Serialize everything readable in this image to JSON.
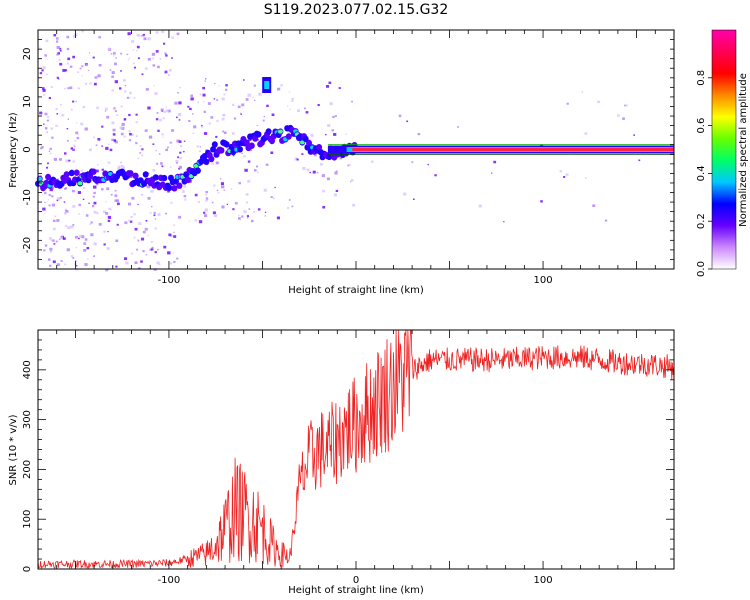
{
  "figure": {
    "title": "S119.2023.077.02.15.G32"
  },
  "chart_data": [
    {
      "type": "heatmap",
      "xlabel": "Height of straight line (km)",
      "ylabel": "Frequency (Hz)",
      "xlim": [
        -170,
        170
      ],
      "ylim": [
        -25,
        25
      ],
      "xticks": [
        -100,
        0,
        100
      ],
      "xtick_labels": [
        "-100",
        "",
        "100"
      ],
      "yticks": [
        -20,
        -10,
        0,
        10,
        20
      ],
      "ridge": {
        "x": [
          -170,
          -150,
          -130,
          -110,
          -95,
          -85,
          -75,
          -60,
          -50,
          -40,
          -35,
          -30,
          -25,
          -20,
          -17,
          -10,
          0,
          20,
          50,
          100,
          170
        ],
        "y": [
          -7,
          -6,
          -5.5,
          -6.5,
          -7,
          -4,
          0,
          1,
          2.5,
          3,
          3.5,
          2,
          1,
          -0.5,
          -2,
          0,
          0,
          0,
          0,
          0,
          0
        ]
      },
      "spur": {
        "x": -48,
        "y": 13.5
      },
      "colorbar": {
        "label": "Normalized spectral amplitude",
        "ticks": [
          0.0,
          0.2,
          0.4,
          0.6,
          0.8
        ],
        "tick_labels": [
          "0.0",
          "0.2",
          "0.4",
          "0.6",
          "0.8"
        ],
        "colors": [
          "#ffffff",
          "#cc88ff",
          "#6600ff",
          "#0000ff",
          "#00c8ff",
          "#00ff66",
          "#66ff00",
          "#ffff00",
          "#ff8800",
          "#ff0000",
          "#ff0055",
          "#ff00aa"
        ]
      },
      "grid": false
    },
    {
      "type": "line",
      "xlabel": "Height of straight line (km)",
      "ylabel": "SNR (10 * v/v)",
      "xlim": [
        -170,
        170
      ],
      "ylim": [
        0,
        480
      ],
      "xticks": [
        -100,
        0,
        100
      ],
      "xtick_labels": [
        "-100",
        "0",
        "100"
      ],
      "yticks": [
        0,
        100,
        200,
        300,
        400
      ],
      "color": "#ee2222",
      "envelope": {
        "x": [
          -170,
          -120,
          -100,
          -90,
          -80,
          -75,
          -70,
          -65,
          -60,
          -55,
          -50,
          -45,
          -40,
          -35,
          -33,
          -30,
          -25,
          -20,
          -15,
          -10,
          -5,
          0,
          5,
          10,
          15,
          20,
          25,
          30,
          35,
          40,
          50,
          60,
          80,
          100,
          120,
          140,
          160,
          170
        ],
        "y": [
          10,
          10,
          12,
          20,
          30,
          50,
          80,
          120,
          110,
          100,
          80,
          50,
          30,
          25,
          90,
          170,
          220,
          240,
          240,
          260,
          280,
          290,
          310,
          330,
          350,
          370,
          390,
          400,
          410,
          420,
          420,
          420,
          420,
          425,
          425,
          415,
          410,
          405
        ]
      },
      "grid": false
    }
  ]
}
